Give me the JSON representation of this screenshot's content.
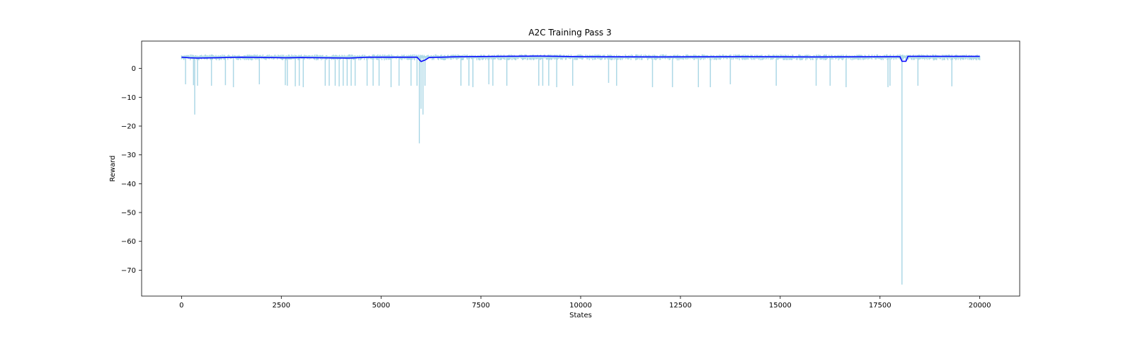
{
  "chart_data": {
    "type": "line",
    "title": "A2C Training Pass 3",
    "xlabel": "States",
    "ylabel": "Reward",
    "xlim": [
      -1000,
      21000
    ],
    "ylim": [
      -79,
      9.5
    ],
    "x_ticks": [
      0,
      2500,
      5000,
      7500,
      10000,
      12500,
      15000,
      17500,
      20000
    ],
    "x_tick_labels": [
      "0",
      "2500",
      "5000",
      "7500",
      "10000",
      "12500",
      "15000",
      "17500",
      "20000"
    ],
    "y_ticks": [
      0,
      -10,
      -20,
      -30,
      -40,
      -50,
      -60,
      -70
    ],
    "y_tick_labels": [
      "0",
      "−10",
      "−20",
      "−30",
      "−40",
      "−50",
      "−60",
      "−70"
    ],
    "grid": false,
    "legend": "none",
    "series": [
      {
        "style": "raw",
        "color": "#add8e6",
        "baseline": 4.2,
        "x_range": [
          0,
          20000
        ],
        "dips": [
          [
            100,
            -5.5
          ],
          [
            300,
            -5.8
          ],
          [
            330,
            -16
          ],
          [
            400,
            -6
          ],
          [
            750,
            -6
          ],
          [
            1100,
            -5.8
          ],
          [
            1300,
            -6.5
          ],
          [
            1950,
            -5.5
          ],
          [
            2600,
            -5.8
          ],
          [
            2650,
            -6
          ],
          [
            2850,
            -6.2
          ],
          [
            2950,
            -6
          ],
          [
            3050,
            -6.5
          ],
          [
            3600,
            -6
          ],
          [
            3700,
            -6
          ],
          [
            3850,
            -6
          ],
          [
            3950,
            -6.2
          ],
          [
            4050,
            -6
          ],
          [
            4150,
            -6
          ],
          [
            4250,
            -6
          ],
          [
            4350,
            -6
          ],
          [
            4650,
            -6
          ],
          [
            4800,
            -6
          ],
          [
            4950,
            -6
          ],
          [
            5250,
            -6.5
          ],
          [
            5450,
            -6
          ],
          [
            5750,
            -6
          ],
          [
            5900,
            -6
          ],
          [
            5960,
            -26
          ],
          [
            6000,
            -14
          ],
          [
            6050,
            -16
          ],
          [
            6100,
            -6
          ],
          [
            7000,
            -6
          ],
          [
            7200,
            -6
          ],
          [
            7300,
            -6.5
          ],
          [
            7700,
            -5.5
          ],
          [
            7800,
            -6
          ],
          [
            8150,
            -6
          ],
          [
            8950,
            -6
          ],
          [
            9050,
            -6
          ],
          [
            9200,
            -6
          ],
          [
            9400,
            -6.5
          ],
          [
            9800,
            -6
          ],
          [
            10700,
            -5
          ],
          [
            10900,
            -6
          ],
          [
            11800,
            -6.5
          ],
          [
            12300,
            -6.5
          ],
          [
            12950,
            -6.5
          ],
          [
            13250,
            -6.5
          ],
          [
            13750,
            -5.5
          ],
          [
            14900,
            -6
          ],
          [
            15900,
            -6
          ],
          [
            16250,
            -6
          ],
          [
            16650,
            -6.5
          ],
          [
            17700,
            -6.5
          ],
          [
            17750,
            -6
          ],
          [
            18050,
            -75
          ],
          [
            18450,
            -6
          ],
          [
            19300,
            -6.2
          ]
        ]
      },
      {
        "style": "smoothed",
        "color": "#0000ff",
        "points": [
          [
            0,
            3.9
          ],
          [
            200,
            3.7
          ],
          [
            400,
            3.6
          ],
          [
            800,
            3.7
          ],
          [
            1500,
            3.9
          ],
          [
            2600,
            3.7
          ],
          [
            3000,
            3.8
          ],
          [
            4200,
            3.6
          ],
          [
            4700,
            3.9
          ],
          [
            5900,
            3.9
          ],
          [
            6000,
            2.4
          ],
          [
            6100,
            2.9
          ],
          [
            6200,
            3.8
          ],
          [
            7000,
            4.1
          ],
          [
            8000,
            4.2
          ],
          [
            9000,
            4.3
          ],
          [
            10000,
            4.1
          ],
          [
            12000,
            4.0
          ],
          [
            14000,
            4.1
          ],
          [
            16000,
            4.0
          ],
          [
            17900,
            4.1
          ],
          [
            18000,
            4.1
          ],
          [
            18050,
            2.5
          ],
          [
            18150,
            2.5
          ],
          [
            18200,
            4.2
          ],
          [
            20000,
            4.2
          ]
        ]
      }
    ]
  }
}
